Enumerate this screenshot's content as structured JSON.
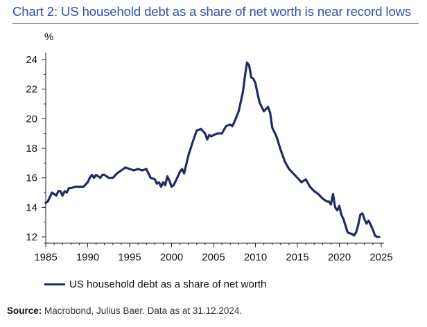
{
  "chart_data": {
    "type": "line",
    "title": "Chart 2: US household debt as a share of net worth is near record lows",
    "ylabel": "%",
    "xlabel": "",
    "xlim": [
      1985,
      2025
    ],
    "ylim": [
      12,
      24
    ],
    "x_ticks": [
      1985,
      1990,
      1995,
      2000,
      2005,
      2010,
      2015,
      2020,
      2025
    ],
    "y_ticks": [
      12,
      14,
      16,
      18,
      20,
      22,
      24
    ],
    "grid": false,
    "legend_position": "bottom-left",
    "series": [
      {
        "name": "US household debt as a share of net worth",
        "color": "#1f2a66",
        "x": [
          1985.0,
          1985.25,
          1985.5,
          1985.75,
          1986.0,
          1986.25,
          1986.5,
          1986.75,
          1987.0,
          1987.25,
          1987.5,
          1987.75,
          1988.0,
          1988.5,
          1989.0,
          1989.5,
          1990.0,
          1990.25,
          1990.5,
          1990.75,
          1991.0,
          1991.25,
          1991.5,
          1991.75,
          1992.0,
          1992.5,
          1993.0,
          1993.5,
          1994.0,
          1994.5,
          1995.0,
          1995.5,
          1996.0,
          1996.5,
          1997.0,
          1997.25,
          1997.5,
          1998.0,
          1998.25,
          1998.5,
          1998.75,
          1999.0,
          1999.25,
          1999.5,
          1999.75,
          2000.0,
          2000.25,
          2000.5,
          2001.0,
          2001.25,
          2001.5,
          2002.0,
          2002.5,
          2003.0,
          2003.5,
          2004.0,
          2004.25,
          2004.5,
          2004.75,
          2005.0,
          2005.5,
          2006.0,
          2006.5,
          2007.0,
          2007.25,
          2007.5,
          2008.0,
          2008.5,
          2008.75,
          2009.0,
          2009.25,
          2009.5,
          2009.75,
          2010.0,
          2010.25,
          2010.5,
          2011.0,
          2011.5,
          2011.75,
          2012.0,
          2012.5,
          2013.0,
          2013.5,
          2014.0,
          2014.5,
          2015.0,
          2015.5,
          2016.0,
          2016.5,
          2017.0,
          2017.5,
          2018.0,
          2018.5,
          2018.75,
          2019.0,
          2019.25,
          2019.5,
          2019.75,
          2020.0,
          2020.25,
          2020.5,
          2021.0,
          2021.5,
          2021.75,
          2022.0,
          2022.25,
          2022.5,
          2022.75,
          2023.0,
          2023.25,
          2023.5,
          2023.75,
          2024.0,
          2024.25,
          2024.5,
          2024.75
        ],
        "y": [
          14.3,
          14.4,
          14.7,
          15.0,
          14.9,
          14.8,
          15.1,
          15.1,
          14.8,
          15.1,
          15.0,
          15.3,
          15.3,
          15.4,
          15.4,
          15.4,
          15.7,
          16.0,
          16.2,
          16.0,
          16.2,
          16.1,
          16.0,
          16.2,
          16.2,
          16.0,
          16.0,
          16.3,
          16.5,
          16.7,
          16.6,
          16.5,
          16.6,
          16.5,
          16.6,
          16.3,
          16.0,
          15.9,
          15.6,
          15.7,
          15.4,
          15.7,
          15.5,
          16.1,
          15.8,
          15.4,
          15.5,
          15.8,
          16.4,
          16.6,
          16.3,
          17.5,
          18.4,
          19.2,
          19.3,
          19.0,
          18.6,
          18.9,
          18.8,
          18.9,
          19.0,
          19.0,
          19.5,
          19.6,
          19.5,
          19.8,
          20.5,
          21.8,
          22.9,
          23.8,
          23.6,
          22.8,
          22.7,
          22.4,
          21.7,
          21.1,
          20.5,
          20.8,
          20.4,
          19.4,
          18.8,
          17.9,
          17.1,
          16.6,
          16.3,
          16.0,
          15.7,
          15.9,
          15.4,
          15.1,
          14.9,
          14.6,
          14.4,
          14.4,
          14.2,
          14.9,
          14.0,
          13.8,
          14.1,
          13.5,
          13.2,
          12.3,
          12.2,
          12.1,
          12.3,
          12.8,
          13.5,
          13.6,
          13.2,
          12.9,
          13.1,
          12.8,
          12.5,
          12.1,
          12.0,
          12.0
        ]
      }
    ]
  },
  "source": {
    "label": "Source:",
    "text": " Macrobond, Julius Baer. Data as at 31.12.2024."
  }
}
